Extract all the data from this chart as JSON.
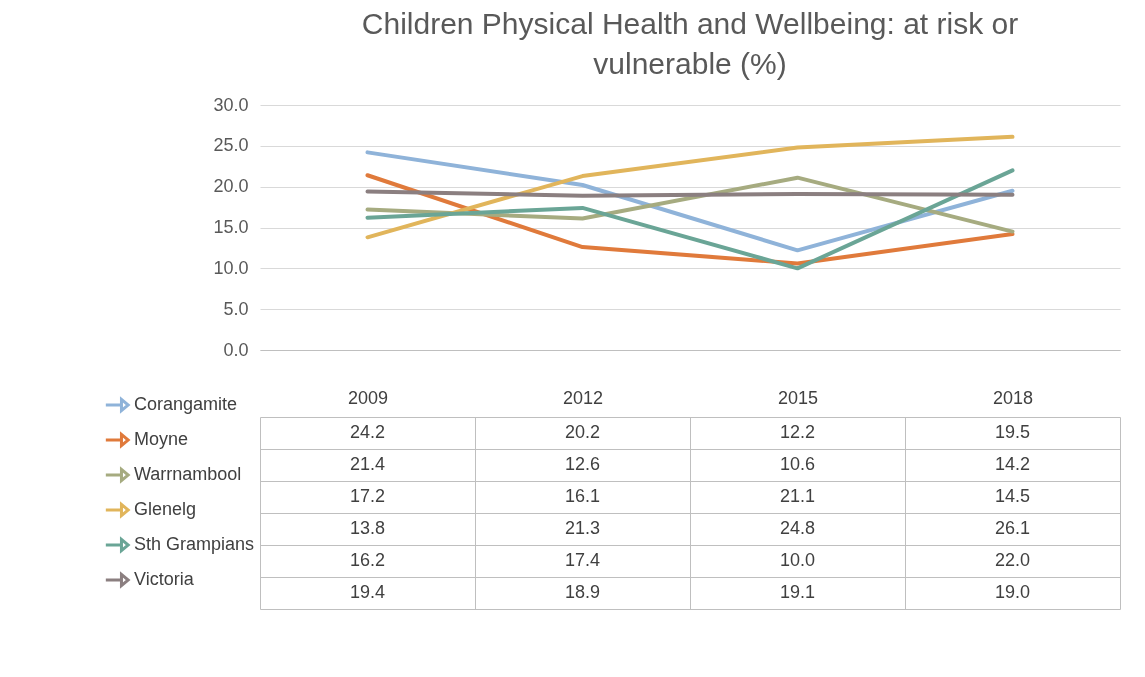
{
  "chart_data": {
    "type": "line",
    "title": "Children Physical Health and Wellbeing: at risk or vulnerable (%)",
    "categories": [
      "2009",
      "2012",
      "2015",
      "2018"
    ],
    "series": [
      {
        "name": "Corangamite",
        "color": "#8fb3d9",
        "values": [
          24.2,
          20.2,
          12.2,
          19.5
        ],
        "value_labels": [
          "24.2",
          "20.2",
          "12.2",
          "19.5"
        ]
      },
      {
        "name": "Moyne",
        "color": "#e07a3b",
        "values": [
          21.4,
          12.6,
          10.6,
          14.2
        ],
        "value_labels": [
          "21.4",
          "12.6",
          "10.6",
          "14.2"
        ]
      },
      {
        "name": "Warrnambool",
        "color": "#a6ab80",
        "values": [
          17.2,
          16.1,
          21.1,
          14.5
        ],
        "value_labels": [
          "17.2",
          "16.1",
          "21.1",
          "14.5"
        ]
      },
      {
        "name": "Glenelg",
        "color": "#e1b55b",
        "values": [
          13.8,
          21.3,
          24.8,
          26.1
        ],
        "value_labels": [
          "13.8",
          "21.3",
          "24.8",
          "26.1"
        ]
      },
      {
        "name": "Sth Grampians",
        "color": "#6aa596",
        "values": [
          16.2,
          17.4,
          10.0,
          22.0
        ],
        "value_labels": [
          "16.2",
          "17.4",
          "10.0",
          "22.0"
        ]
      },
      {
        "name": "Victoria",
        "color": "#8b7f80",
        "values": [
          19.4,
          18.9,
          19.1,
          19.0
        ],
        "value_labels": [
          "19.4",
          "18.9",
          "19.1",
          "19.0"
        ]
      }
    ],
    "ylim": [
      0,
      30
    ],
    "yticks": [
      {
        "value": 0,
        "label": "0.0"
      },
      {
        "value": 5,
        "label": "5.0"
      },
      {
        "value": 10,
        "label": "10.0"
      },
      {
        "value": 15,
        "label": "15.0"
      },
      {
        "value": 20,
        "label": "20.0"
      },
      {
        "value": 25,
        "label": "25.0"
      },
      {
        "value": 30,
        "label": "30.0"
      }
    ],
    "grid": "y",
    "legend": "bottom",
    "marker": "none",
    "line_style": "solid"
  }
}
